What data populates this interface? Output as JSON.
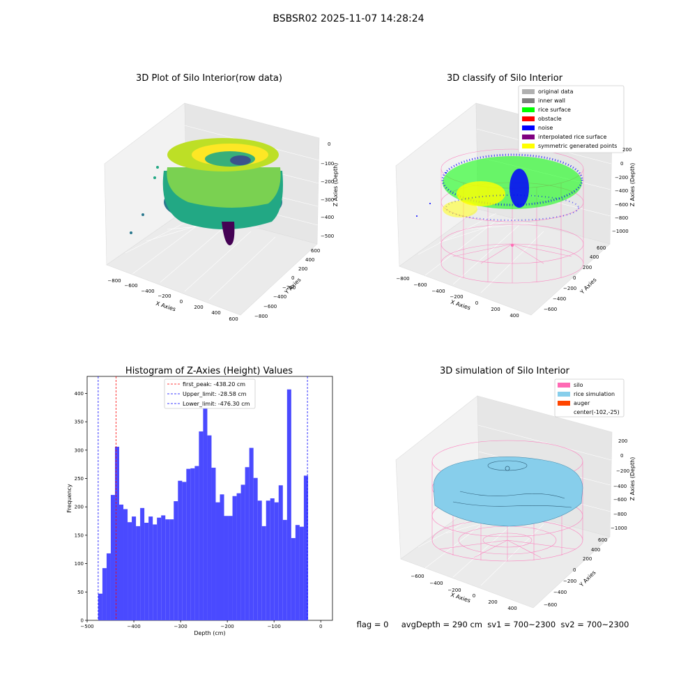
{
  "suptitle": "BSBSR02 2025-11-07 14:28:24",
  "panel1": {
    "title": "3D Plot of Silo Interior(row data)",
    "xlabel": "X Axies",
    "ylabel": "Y Axies",
    "zlabel": "Z Axies (Depth)",
    "xticks": [
      "−800",
      "−600",
      "−400",
      "−200",
      "0",
      "200",
      "400",
      "600"
    ],
    "yticks": [
      "−800",
      "−600",
      "−400",
      "−200",
      "0",
      "200",
      "400",
      "600"
    ],
    "zticks": [
      "0",
      "−100",
      "−200",
      "−300",
      "−400",
      "−500"
    ]
  },
  "panel2": {
    "title": "3D classify of Silo Interior",
    "xlabel": "X Axies",
    "ylabel": "Y Axies",
    "zlabel": "Z Axies (Depth)",
    "xticks": [
      "−800",
      "−600",
      "−400",
      "−200",
      "0",
      "200",
      "400"
    ],
    "yticks": [
      "−600",
      "−400",
      "−200",
      "0",
      "200",
      "400",
      "600"
    ],
    "zticks": [
      "200",
      "0",
      "−200",
      "−400",
      "−600",
      "−800",
      "−1000"
    ],
    "legend": [
      {
        "label": "original data",
        "color": "#b0b0b0"
      },
      {
        "label": "inner wall",
        "color": "#808080"
      },
      {
        "label": "rice surface",
        "color": "#00ff00"
      },
      {
        "label": "obstacle",
        "color": "#ff0000"
      },
      {
        "label": "noise",
        "color": "#0000ff"
      },
      {
        "label": "interpolated rice surface",
        "color": "#800080"
      },
      {
        "label": "symmetric generated points",
        "color": "#ffff00"
      }
    ]
  },
  "panel4": {
    "title": "3D simulation of Silo Interior",
    "xlabel": "X Axies",
    "ylabel": "Y Axies",
    "zlabel": "Z Axies (Depth)",
    "xticks": [
      "−600",
      "−400",
      "−200",
      "0",
      "200",
      "400"
    ],
    "yticks": [
      "−600",
      "−400",
      "−200",
      "0",
      "200",
      "400",
      "600"
    ],
    "zticks": [
      "200",
      "0",
      "−200",
      "−400",
      "−600",
      "−800",
      "−1000"
    ],
    "legend": [
      {
        "label": "silo",
        "color": "#ff69b4"
      },
      {
        "label": "rice simulation",
        "color": "#87ceeb"
      },
      {
        "label": "auger",
        "color": "#ff4500"
      },
      {
        "label": "center(-102,-25)",
        "color": null
      }
    ]
  },
  "footer": "flag = 0     avgDepth = 290 cm  sv1 = 700~2300  sv2 = 700~2300",
  "chart_data": [
    {
      "type": "bar",
      "title": "Histogram of Z-Axies (Height) Values",
      "xlabel": "Depth (cm)",
      "ylabel": "Frequency",
      "xlim": [
        -500,
        25
      ],
      "ylim": [
        0,
        430
      ],
      "xticks": [
        -500,
        -400,
        -300,
        -200,
        -100,
        0
      ],
      "xtick_labels": [
        "−500",
        "−400",
        "−300",
        "−200",
        "−100",
        "0"
      ],
      "yticks": [
        0,
        50,
        100,
        150,
        200,
        250,
        300,
        350,
        400
      ],
      "yticks_labels": [
        "0",
        "50",
        "100",
        "150",
        "200",
        "250",
        "300",
        "350",
        "400"
      ],
      "bar_color": "#4a4aff",
      "bin_start": -476.3,
      "bin_width": 8.98,
      "counts": [
        47,
        92,
        118,
        221,
        306,
        204,
        196,
        173,
        183,
        166,
        198,
        172,
        183,
        169,
        181,
        185,
        178,
        178,
        210,
        246,
        244,
        267,
        268,
        272,
        333,
        378,
        326,
        269,
        208,
        222,
        184,
        184,
        219,
        224,
        239,
        270,
        304,
        251,
        211,
        166,
        211,
        215,
        208,
        238,
        177,
        407,
        145,
        168,
        165,
        255
      ],
      "vlines": [
        {
          "label": "first_peak: -438.20 cm",
          "x": -438.2,
          "color": "#ff0000"
        },
        {
          "label": "Upper_limit: -28.58 cm",
          "x": -28.58,
          "color": "#0000ff"
        },
        {
          "label": "Lower_limit: -476.30 cm",
          "x": -476.3,
          "color": "#0000ff"
        }
      ]
    }
  ]
}
